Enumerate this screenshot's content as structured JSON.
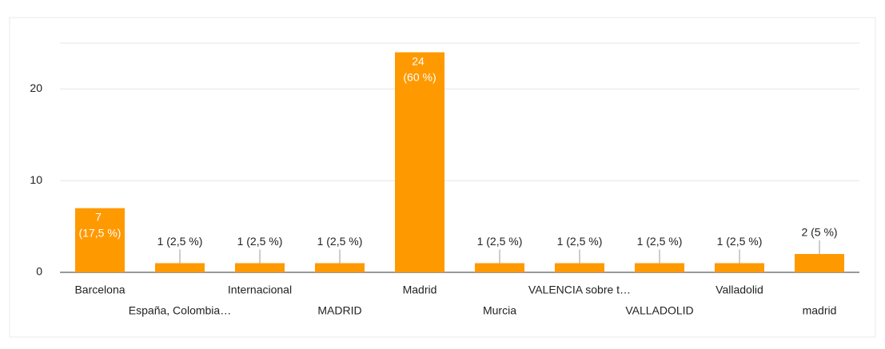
{
  "chart_data": {
    "type": "bar",
    "categories": [
      "Barcelona",
      "España, Colombia…",
      "Internacional",
      "MADRID",
      "Madrid",
      "Murcia",
      "VALENCIA sobre t…",
      "VALLADOLID",
      "Valladolid",
      "madrid"
    ],
    "values": [
      7,
      1,
      1,
      1,
      24,
      1,
      1,
      1,
      1,
      2
    ],
    "value_labels": [
      "7 (17,5 %)",
      "1 (2,5 %)",
      "1 (2,5 %)",
      "1 (2,5 %)",
      "24 (60 %)",
      "1 (2,5 %)",
      "1 (2,5 %)",
      "1 (2,5 %)",
      "1 (2,5 %)",
      "2 (5 %)"
    ],
    "color": "#ff9900",
    "ylim": [
      0,
      25
    ],
    "yticks": [
      0,
      10,
      20
    ],
    "grid": true
  }
}
